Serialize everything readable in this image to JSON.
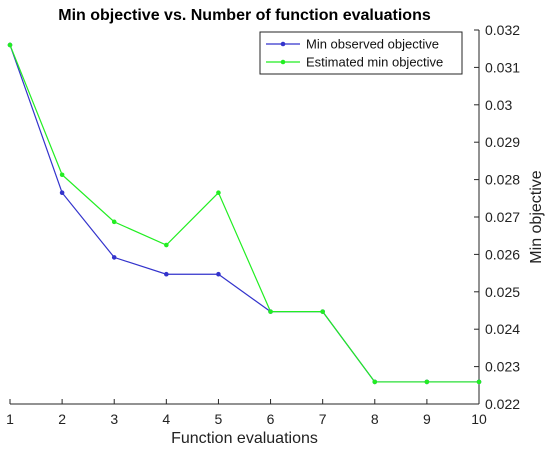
{
  "chart_data": {
    "type": "line",
    "title": "Min objective vs. Number of function evaluations",
    "xlabel": "Function evaluations",
    "ylabel": "Min objective",
    "xlim": [
      1,
      10
    ],
    "ylim": [
      0.022,
      0.032
    ],
    "x_ticks": [
      1,
      2,
      3,
      4,
      5,
      6,
      7,
      8,
      9,
      10
    ],
    "y_ticks": [
      0.022,
      0.023,
      0.024,
      0.025,
      0.026,
      0.027,
      0.028,
      0.029,
      0.03,
      0.031,
      0.032
    ],
    "y_axis_side": "right",
    "grid": false,
    "legend_position": "top-right",
    "x": [
      1,
      2,
      3,
      4,
      5,
      6,
      7,
      8,
      9,
      10
    ],
    "series": [
      {
        "name": "Min observed objective",
        "color": "#3333cc",
        "values": [
          0.0316,
          0.02765,
          0.02592,
          0.02547,
          0.02547,
          0.02447,
          0.02447,
          0.02259,
          0.02259,
          0.02259
        ]
      },
      {
        "name": "Estimated min objective",
        "color": "#22ee22",
        "values": [
          0.0316,
          0.02813,
          0.02687,
          0.02625,
          0.02765,
          0.02447,
          0.02447,
          0.02259,
          0.02259,
          0.02259
        ]
      }
    ]
  }
}
